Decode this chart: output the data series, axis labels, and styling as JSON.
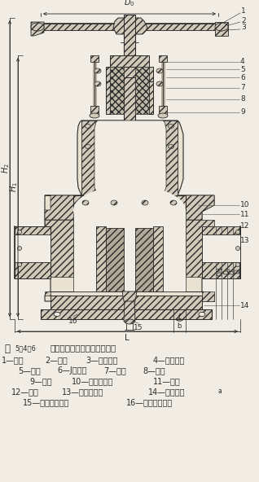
{
  "bg_color": "#f2ede4",
  "line_color": "#2a2a2a",
  "hatch_fc": "#d4cfc4",
  "fig_title": "图",
  "fig_num": "5－4－6",
  "fig_desc": "低压升降杆平行式双闸板闸阀",
  "legend_lines": [
    [
      "1—阀杆",
      "2—手轮",
      "3—阀杆螺母",
      "4—填料压盖"
    ],
    [
      "5—填料",
      "6—J形螺栓",
      "7—阀盖",
      "8—垫片"
    ],
    [
      "9—阀体",
      "10—闸板密封圈",
      "11—闸板"
    ],
    [
      "12—顶模",
      "13—阀体密封圈",
      "14—法兰孔数a"
    ],
    [
      "15—有密封圈型式",
      "16—无密封圈型式"
    ]
  ],
  "fig_width": 3.18,
  "fig_height": 5.92,
  "dpi": 100
}
